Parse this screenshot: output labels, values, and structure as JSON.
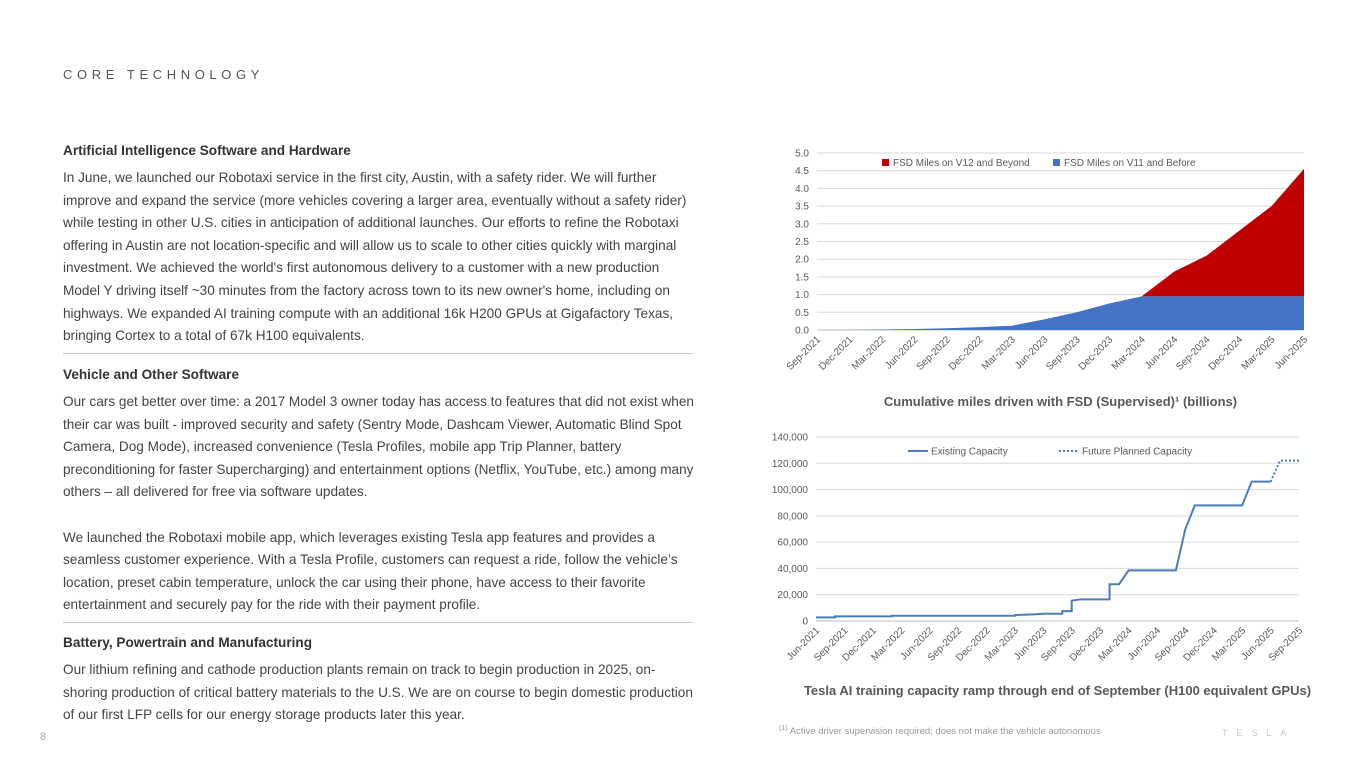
{
  "header": {
    "section_label": "CORE TECHNOLOGY"
  },
  "sections": [
    {
      "title": "Artificial Intelligence Software and Hardware",
      "paragraphs": [
        "In June, we launched our Robotaxi service in the first city, Austin, with a safety rider. We will further improve and expand the service (more vehicles covering a larger area, eventually without a safety rider) while testing in other U.S. cities in anticipation of additional launches. Our efforts to refine the Robotaxi offering in Austin are not location-specific and will allow us to scale to other cities quickly with marginal investment. We achieved the world's first autonomous delivery to a customer with a new production Model Y driving itself ~30 minutes from the factory across town to its new owner's home, including on highways. We expanded AI training compute with an additional 16k H200 GPUs at Gigafactory Texas, bringing Cortex to a total of 67k H100 equivalents."
      ]
    },
    {
      "title": "Vehicle and Other Software",
      "paragraphs": [
        "Our cars get better over time: a 2017 Model 3 owner today has access to features that did not exist when their car was built - improved security and safety (Sentry Mode, Dashcam Viewer, Automatic Blind Spot Camera, Dog Mode), increased convenience (Tesla Profiles, mobile app Trip Planner, battery preconditioning for faster Supercharging) and entertainment options (Netflix, YouTube, etc.) among many others – all delivered for free via software updates.",
        "We launched the Robotaxi mobile app, which leverages existing Tesla app features and provides a seamless customer experience. With a Tesla Profile, customers can request a ride, follow the vehicle’s location, preset cabin temperature, unlock the car using their phone, have access to their favorite entertainment and securely pay for the ride with their payment profile."
      ]
    },
    {
      "title": "Battery, Powertrain and Manufacturing",
      "paragraphs": [
        "Our lithium refining and cathode production plants remain on track to begin production in 2025, on-shoring production of critical battery materials to the U.S. We are on course to begin domestic production of our first LFP cells for our energy storage products later this year."
      ]
    }
  ],
  "footer": {
    "page_number": "8",
    "footnote_marker": "(1)",
    "footnote": "Active driver supervision required; does not make the vehicle autonomous",
    "logo": "TESLA"
  },
  "chart_data": [
    {
      "type": "area",
      "stacked": true,
      "title": "Cumulative miles driven with FSD (Supervised)¹ (billions)",
      "categories": [
        "Sep-2021",
        "Dec-2021",
        "Mar-2022",
        "Jun-2022",
        "Sep-2022",
        "Dec-2022",
        "Mar-2023",
        "Jun-2023",
        "Sep-2023",
        "Dec-2023",
        "Mar-2024",
        "Jun-2024",
        "Sep-2024",
        "Dec-2024",
        "Mar-2025",
        "Jun-2025"
      ],
      "series": [
        {
          "name": "FSD Miles on V11 and Before",
          "color": "#4472C4",
          "values": [
            0,
            0.005,
            0.015,
            0.03,
            0.05,
            0.08,
            0.12,
            0.3,
            0.5,
            0.75,
            0.95,
            0.95,
            0.95,
            0.95,
            0.95,
            0.95
          ]
        },
        {
          "name": "FSD Miles on V12 and Beyond",
          "color": "#C00000",
          "values": [
            0,
            0,
            0,
            0,
            0,
            0,
            0,
            0,
            0,
            0,
            0,
            0.7,
            1.15,
            1.85,
            2.55,
            3.6
          ]
        }
      ],
      "legend_order": [
        "FSD Miles on V12 and Beyond",
        "FSD Miles on V11 and Before"
      ],
      "ylim": [
        0,
        5
      ],
      "yticks": [
        "0.0",
        "0.5",
        "1.0",
        "1.5",
        "2.0",
        "2.5",
        "3.0",
        "3.5",
        "4.0",
        "4.5",
        "5.0"
      ],
      "grid": true,
      "legend": "top"
    },
    {
      "type": "line",
      "title": "Tesla AI training capacity ramp through end of September (H100 equivalent GPUs)",
      "categories": [
        "Jun-2021",
        "Sep-2021",
        "Dec-2021",
        "Mar-2022",
        "Jun-2022",
        "Sep-2022",
        "Dec-2022",
        "Mar-2023",
        "Jun-2023",
        "Sep-2023",
        "Dec-2023",
        "Mar-2024",
        "Jun-2024",
        "Sep-2024",
        "Dec-2024",
        "Mar-2025",
        "Jun-2025",
        "Sep-2025"
      ],
      "series": [
        {
          "name": "Existing Capacity",
          "color": "#4A7EBB",
          "style": "solid",
          "points": [
            [
              "Jun-2021",
              2800
            ],
            [
              "Aug-2021",
              2800
            ],
            [
              "Aug-2021",
              3500
            ],
            [
              "Feb-2022",
              3500
            ],
            [
              "Feb-2022",
              4000
            ],
            [
              "Mar-2023",
              4000
            ],
            [
              "Mar-2023",
              4500
            ],
            [
              "May-2023",
              5000
            ],
            [
              "Jun-2023",
              5500
            ],
            [
              "Aug-2023",
              5500
            ],
            [
              "Aug-2023",
              7500
            ],
            [
              "Sep-2023",
              7500
            ],
            [
              "Sep-2023",
              15500
            ],
            [
              "Oct-2023",
              16500
            ],
            [
              "Jan-2024",
              16500
            ],
            [
              "Jan-2024",
              28000
            ],
            [
              "Feb-2024",
              28000
            ],
            [
              "Mar-2024",
              38500
            ],
            [
              "Aug-2024",
              38500
            ],
            [
              "Sep-2024",
              70000
            ],
            [
              "Oct-2024",
              88000
            ],
            [
              "Mar-2025",
              88000
            ],
            [
              "Apr-2025",
              106000
            ],
            [
              "Jun-2025",
              106000
            ]
          ]
        },
        {
          "name": "Future Planned Capacity",
          "color": "#4A7EBB",
          "style": "dotted",
          "points": [
            [
              "Jun-2025",
              106000
            ],
            [
              "Jul-2025",
              122000
            ],
            [
              "Sep-2025",
              122000
            ]
          ]
        }
      ],
      "ylim": [
        0,
        140000
      ],
      "yticks": [
        "0",
        "20,000",
        "40,000",
        "60,000",
        "80,000",
        "100,000",
        "120,000",
        "140,000"
      ],
      "grid": true,
      "legend": "top"
    }
  ]
}
